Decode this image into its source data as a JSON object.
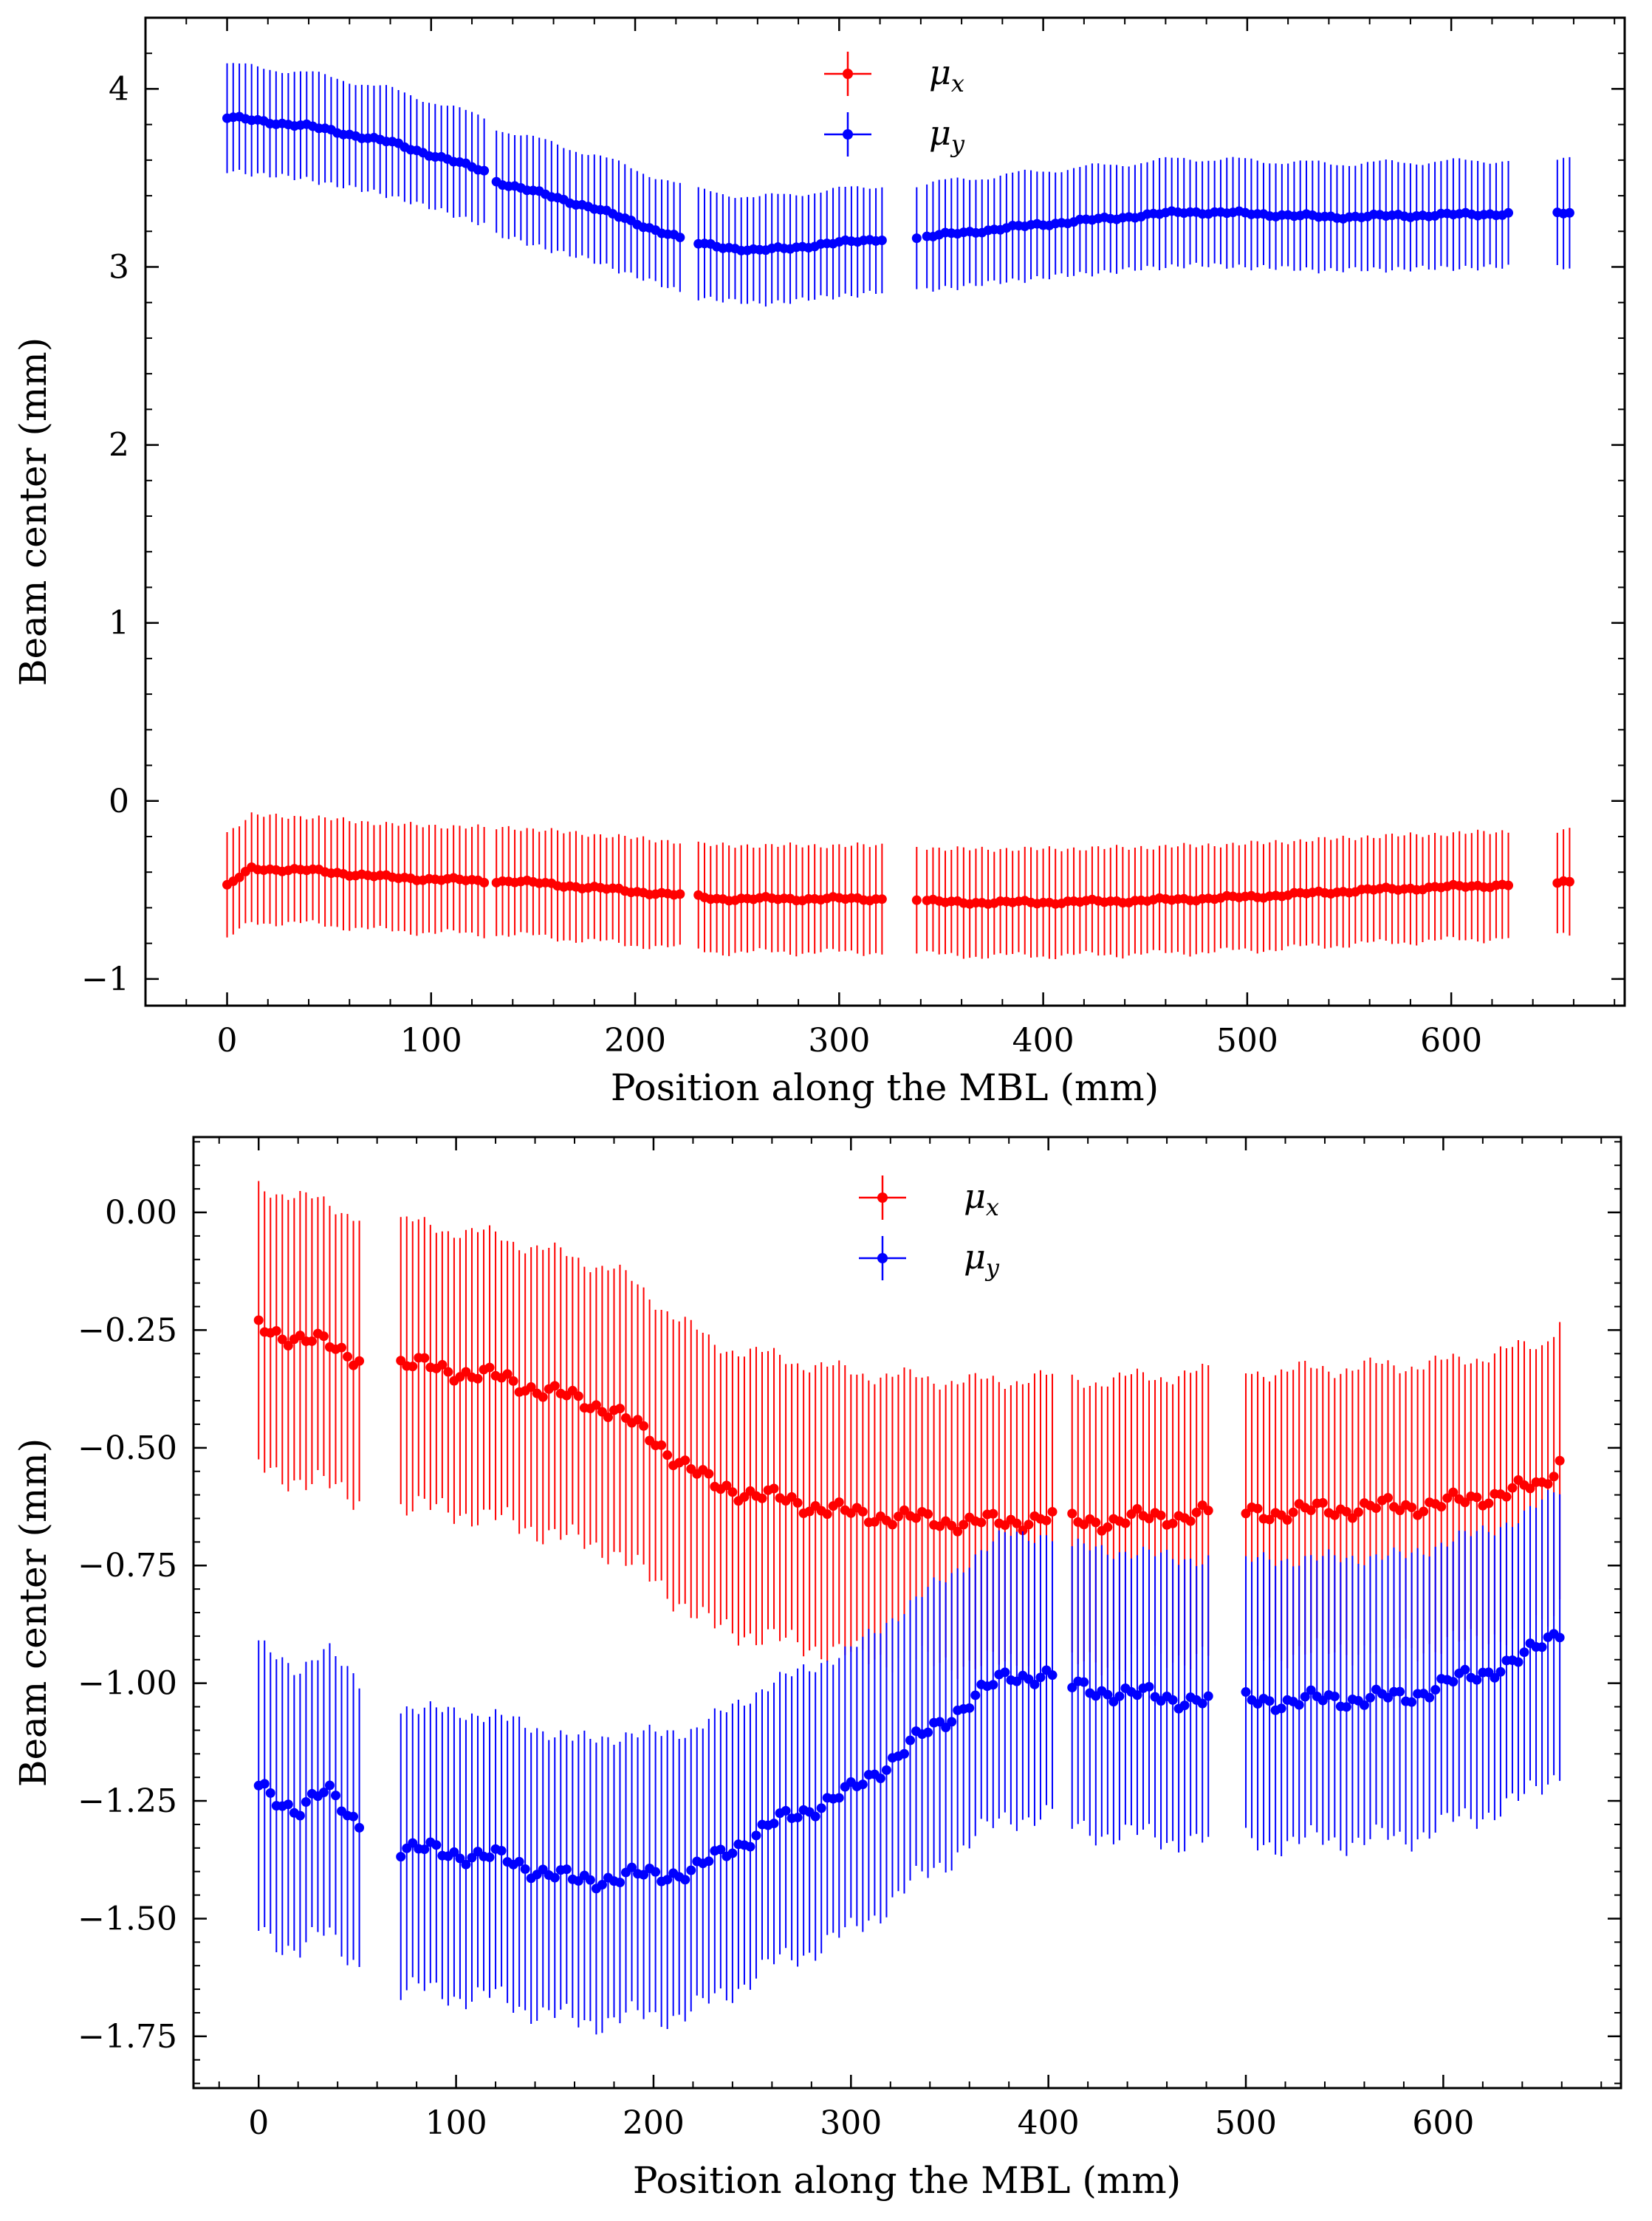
{
  "chart_data": [
    {
      "type": "errorbar",
      "xlabel": "Position along the MBL (mm)",
      "ylabel": "Beam center (mm)",
      "xlim": [
        -40,
        685
      ],
      "ylim": [
        -1.15,
        4.4
      ],
      "xticks": [
        0,
        100,
        200,
        300,
        400,
        500,
        600
      ],
      "xtick_labels": [
        "0",
        "100",
        "200",
        "300",
        "400",
        "500",
        "600"
      ],
      "yticks": [
        -1,
        0,
        1,
        2,
        3,
        4
      ],
      "ytick_labels": [
        "−1",
        "0",
        "1",
        "2",
        "3",
        "4"
      ],
      "legend": {
        "position": "top-center",
        "entries": [
          "μx",
          "μy"
        ]
      },
      "grid": false,
      "x_step": 3,
      "segments": [
        [
          0,
          126
        ],
        [
          132,
          222
        ],
        [
          231,
          322
        ],
        [
          338,
          338
        ],
        [
          343,
          630
        ],
        [
          652,
          660
        ]
      ],
      "series": [
        {
          "name": "μx",
          "color": "#ff0000",
          "anchors_x": [
            0,
            12,
            40,
            80,
            126,
            140,
            222,
            240,
            322,
            338,
            350,
            400,
            450,
            500,
            560,
            630,
            660
          ],
          "anchors_y": [
            -0.48,
            -0.38,
            -0.39,
            -0.43,
            -0.45,
            -0.45,
            -0.53,
            -0.55,
            -0.55,
            -0.55,
            -0.57,
            -0.57,
            -0.56,
            -0.54,
            -0.5,
            -0.47,
            -0.46
          ],
          "error": 0.3
        },
        {
          "name": "μy",
          "color": "#0000ff",
          "anchors_x": [
            0,
            40,
            80,
            126,
            132,
            180,
            222,
            231,
            260,
            322,
            338,
            343,
            400,
            470,
            500,
            540,
            630,
            652,
            660
          ],
          "anchors_y": [
            3.84,
            3.79,
            3.7,
            3.54,
            3.48,
            3.33,
            3.16,
            3.13,
            3.09,
            3.16,
            3.16,
            3.17,
            3.24,
            3.31,
            3.3,
            3.28,
            3.3,
            3.3,
            3.3
          ],
          "error": 0.3
        }
      ]
    },
    {
      "type": "errorbar",
      "xlabel": "Position along the MBL (mm)",
      "ylabel": "Beam center (mm)",
      "xlim": [
        -33,
        690
      ],
      "ylim": [
        -1.86,
        0.16
      ],
      "xticks": [
        0,
        100,
        200,
        300,
        400,
        500,
        600
      ],
      "xtick_labels": [
        "0",
        "100",
        "200",
        "300",
        "400",
        "500",
        "600"
      ],
      "yticks": [
        0.0,
        -0.25,
        -0.5,
        -0.75,
        -1.0,
        -1.25,
        -1.5,
        -1.75
      ],
      "ytick_labels": [
        "0.00",
        "−0.25",
        "−0.50",
        "−0.75",
        "−1.00",
        "−1.25",
        "−1.50",
        "−1.75"
      ],
      "legend": {
        "position": "top-center",
        "entries": [
          "μx",
          "μy"
        ]
      },
      "grid": false,
      "x_step": 3,
      "segments": [
        [
          0,
          52
        ],
        [
          72,
          404
        ],
        [
          412,
          482
        ],
        [
          500,
          660
        ]
      ],
      "series": [
        {
          "name": "μx",
          "color": "#ff0000",
          "anchors_x": [
            0,
            20,
            35,
            52,
            72,
            120,
            180,
            230,
            300,
            360,
            404,
            412,
            482,
            500,
            600,
            650,
            660
          ],
          "anchors_y": [
            -0.24,
            -0.27,
            -0.28,
            -0.31,
            -0.32,
            -0.35,
            -0.42,
            -0.58,
            -0.64,
            -0.66,
            -0.65,
            -0.66,
            -0.64,
            -0.64,
            -0.62,
            -0.58,
            -0.52
          ],
          "error": 0.3
        },
        {
          "name": "μy",
          "color": "#0000ff",
          "anchors_x": [
            0,
            20,
            35,
            52,
            72,
            120,
            160,
            220,
            260,
            300,
            340,
            380,
            404,
            412,
            482,
            500,
            580,
            640,
            660
          ],
          "anchors_y": [
            -1.22,
            -1.27,
            -1.23,
            -1.3,
            -1.35,
            -1.37,
            -1.42,
            -1.4,
            -1.3,
            -1.23,
            -1.1,
            -0.98,
            -0.99,
            -1.01,
            -1.04,
            -1.04,
            -1.03,
            -0.95,
            -0.88
          ],
          "error": 0.3
        }
      ]
    }
  ]
}
